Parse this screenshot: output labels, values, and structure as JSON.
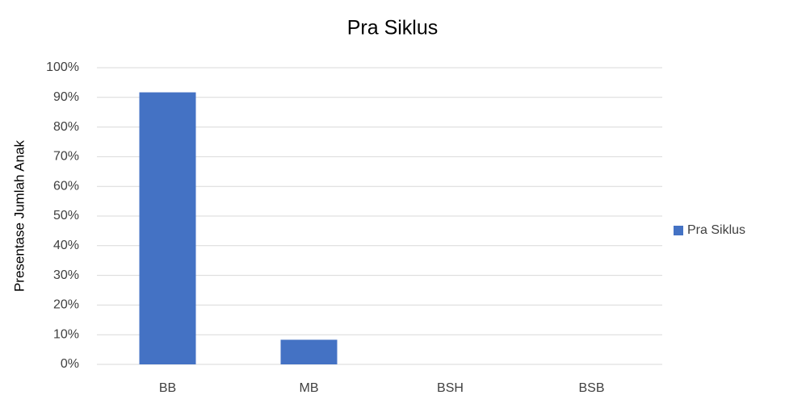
{
  "chart_data": {
    "type": "bar",
    "title": "Pra Siklus",
    "ylabel": "Presentase Jumlah Anak",
    "categories": [
      "BB",
      "MB",
      "BSH",
      "BSB"
    ],
    "series": [
      {
        "name": "Pra Siklus",
        "color": "#4472c4",
        "values": [
          91.7,
          8.3,
          0,
          0
        ]
      }
    ],
    "ylim": [
      0,
      100
    ],
    "yticks": [
      {
        "value": 0,
        "label": "0%"
      },
      {
        "value": 10,
        "label": "10%"
      },
      {
        "value": 20,
        "label": "20%"
      },
      {
        "value": 30,
        "label": "30%"
      },
      {
        "value": 40,
        "label": "40%"
      },
      {
        "value": 50,
        "label": "50%"
      },
      {
        "value": 60,
        "label": "60%"
      },
      {
        "value": 70,
        "label": "70%"
      },
      {
        "value": 80,
        "label": "80%"
      },
      {
        "value": 90,
        "label": "90%"
      },
      {
        "value": 100,
        "label": "100%"
      }
    ],
    "grid": true,
    "legend": "right"
  }
}
